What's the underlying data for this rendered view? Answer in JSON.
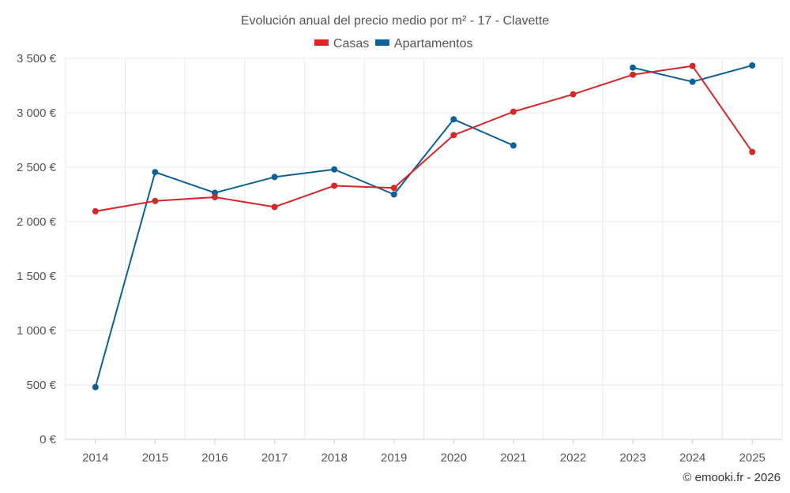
{
  "chart_data": {
    "type": "line",
    "title": "Evolución anual del precio medio por m² - 17 - Clavette",
    "categories": [
      "2014",
      "2015",
      "2016",
      "2017",
      "2018",
      "2019",
      "2020",
      "2021",
      "2022",
      "2023",
      "2024",
      "2025"
    ],
    "y_ticks": [
      0,
      500,
      1000,
      1500,
      2000,
      2500,
      3000,
      3500
    ],
    "y_tick_labels": [
      "0 €",
      "500 €",
      "1 000 €",
      "1 500 €",
      "2 000 €",
      "2 500 €",
      "3 000 €",
      "3 500 €"
    ],
    "ylim": [
      0,
      3500
    ],
    "grid": true,
    "legend_position": "top-center",
    "series": [
      {
        "name": "Casas",
        "color": "#d62728",
        "values": [
          2095,
          2190,
          2225,
          2135,
          2330,
          2310,
          2795,
          3010,
          3170,
          3350,
          3430,
          2640
        ]
      },
      {
        "name": "Apartamentos",
        "color": "#0b6196",
        "values": [
          480,
          2455,
          2265,
          2410,
          2480,
          2250,
          2940,
          2700,
          null,
          3415,
          3285,
          3435
        ]
      }
    ],
    "credit": "© emooki.fr - 2026"
  }
}
